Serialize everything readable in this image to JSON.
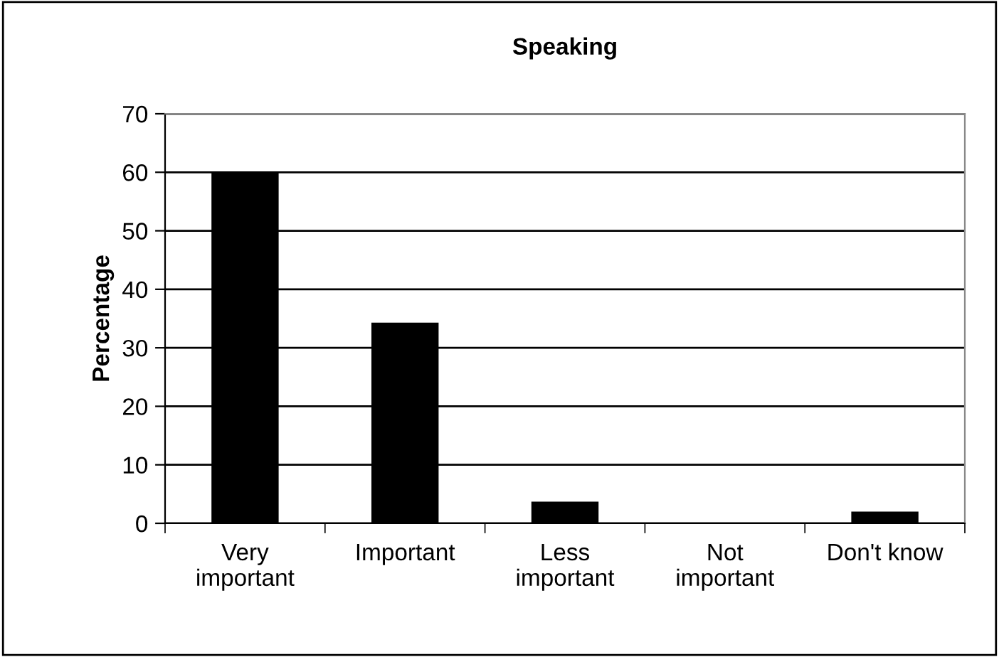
{
  "chart_data": {
    "type": "bar",
    "title": "Speaking",
    "ylabel": "Percentage",
    "categories": [
      "Very\nimportant",
      "Important",
      "Less\nimportant",
      "Not\nimportant",
      "Don't know"
    ],
    "values": [
      60,
      34.3,
      3.7,
      0,
      2.0
    ],
    "color": "#000000",
    "ylim": [
      0,
      70
    ],
    "yticks": [
      0,
      10,
      20,
      30,
      40,
      50,
      60,
      70
    ],
    "grid": "y",
    "legend": false
  }
}
